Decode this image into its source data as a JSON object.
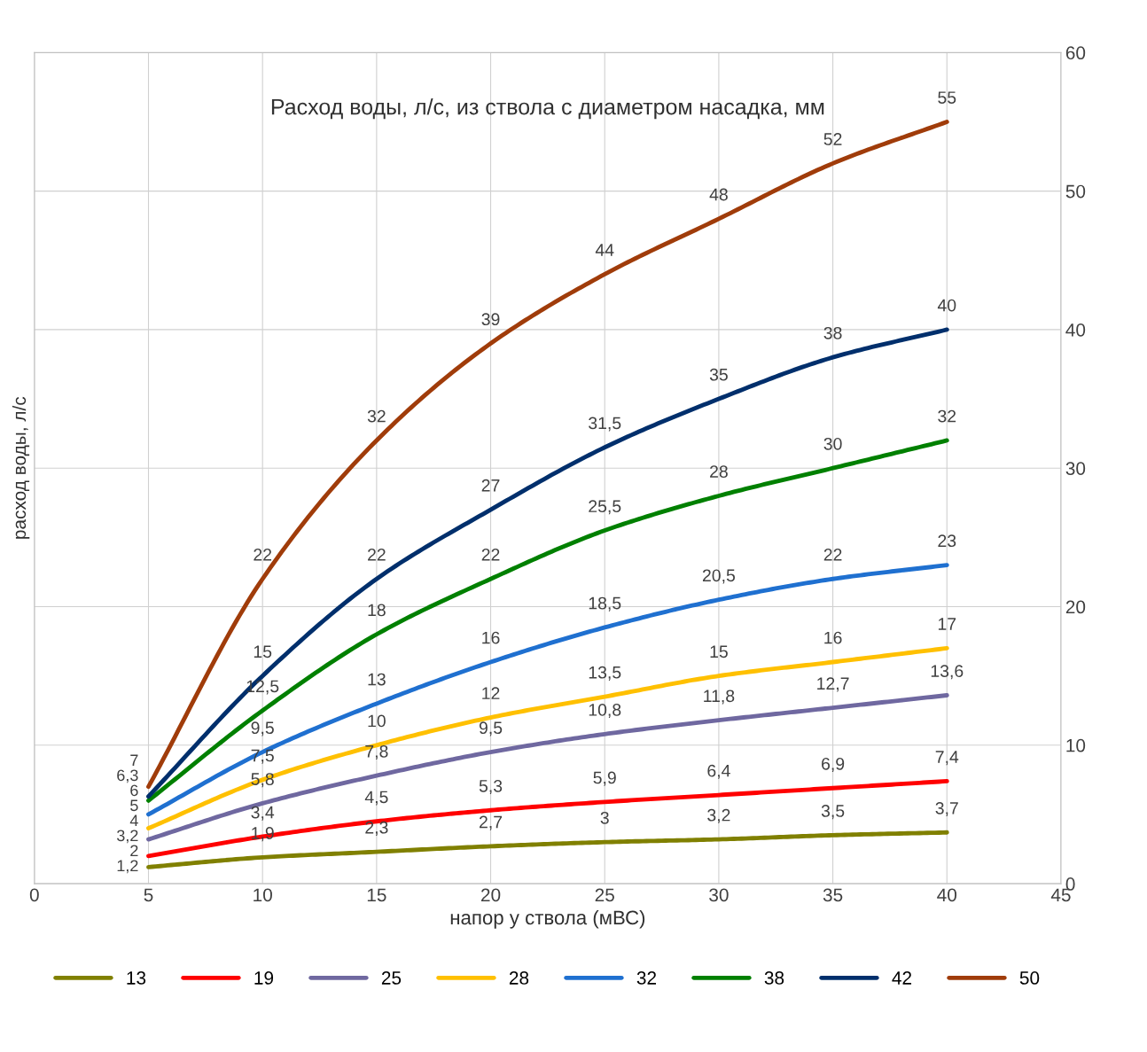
{
  "chart_data": {
    "type": "line",
    "title": "Расход воды, л/с, из ствола с диаметром насадка, мм",
    "xlabel": "напор у ствола (мВС)",
    "ylabel": "расход воды, л/с",
    "x": [
      5,
      10,
      15,
      20,
      25,
      30,
      35,
      40
    ],
    "xlim": [
      0,
      45
    ],
    "xticks": [
      0,
      5,
      10,
      15,
      20,
      25,
      30,
      35,
      40,
      45
    ],
    "ylim": [
      0,
      60
    ],
    "yticks": [
      0,
      10,
      20,
      30,
      40,
      50,
      60
    ],
    "grid": true,
    "legend": "bottom",
    "marker": "none",
    "line_style": "solid",
    "series": [
      {
        "name": "13",
        "color": "#808000",
        "values": [
          1.2,
          1.9,
          2.3,
          2.7,
          3,
          3.2,
          3.5,
          3.7
        ],
        "value_labels": [
          "1,2",
          "1,9",
          "2,3",
          "2,7",
          "3",
          "3,2",
          "3,5",
          "3,7"
        ]
      },
      {
        "name": "19",
        "color": "#ff0000",
        "values": [
          2,
          3.4,
          4.5,
          5.3,
          5.9,
          6.4,
          6.9,
          7.4
        ],
        "value_labels": [
          "2",
          "3,4",
          "4,5",
          "5,3",
          "5,9",
          "6,4",
          "6,9",
          "7,4"
        ]
      },
      {
        "name": "25",
        "color": "#6f68a0",
        "values": [
          3.2,
          5.8,
          7.8,
          9.5,
          10.8,
          11.8,
          12.7,
          13.6
        ],
        "value_labels": [
          "3,2",
          "5,8",
          "7,8",
          "9,5",
          "10,8",
          "11,8",
          "12,7",
          "13,6"
        ]
      },
      {
        "name": "28",
        "color": "#ffc000",
        "values": [
          4,
          7.5,
          10,
          12,
          13.5,
          15,
          16,
          17
        ],
        "value_labels": [
          "4",
          "7,5",
          "10",
          "12",
          "13,5",
          "15",
          "16",
          "17"
        ]
      },
      {
        "name": "32",
        "color": "#1f70d0",
        "values": [
          5,
          9.5,
          13,
          16,
          18.5,
          20.5,
          22,
          23
        ],
        "value_labels": [
          "5",
          "9,5",
          "13",
          "16",
          "18,5",
          "20,5",
          "22",
          "23"
        ]
      },
      {
        "name": "38",
        "color": "#008000",
        "values": [
          6,
          12.5,
          18,
          22,
          25.5,
          28,
          30,
          32
        ],
        "value_labels": [
          "6",
          "12,5",
          "18",
          "22",
          "25,5",
          "28",
          "30",
          "32"
        ]
      },
      {
        "name": "42",
        "color": "#002f6c",
        "values": [
          6.3,
          15,
          22,
          27,
          31.5,
          35,
          38,
          40
        ],
        "value_labels": [
          "6,3",
          "15",
          "22",
          "27",
          "31,5",
          "35",
          "38",
          "40"
        ]
      },
      {
        "name": "50",
        "color": "#a03c0a",
        "values": [
          7,
          22,
          32,
          39,
          44,
          48,
          52,
          55
        ],
        "value_labels": [
          "7",
          "22",
          "32",
          "39",
          "44",
          "48",
          "52",
          "55"
        ]
      }
    ]
  }
}
